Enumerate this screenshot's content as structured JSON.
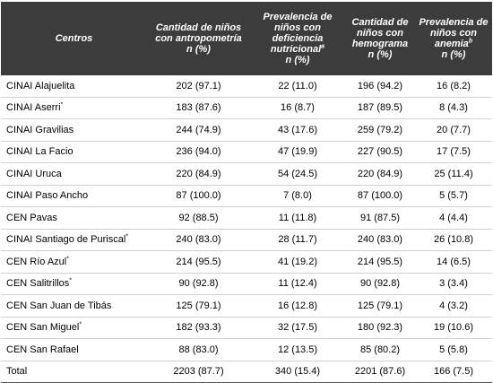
{
  "table": {
    "header": [
      {
        "text": "Centros"
      },
      {
        "text": "Cantidad de niños con antropometría",
        "unit": "n (%)"
      },
      {
        "text": "Prevalencia de niños con deficiencia nutricional",
        "sup": "a",
        "unit": "n (%)"
      },
      {
        "text": "Cantidad de niños con hemograma",
        "unit": "n (%)"
      },
      {
        "text": "Prevalencia de niños con anemia",
        "sup": "b",
        "unit": "n (%)"
      }
    ],
    "rows": [
      {
        "centro": "CINAI Alajuelita",
        "cells": [
          "202 (97.1)",
          "22 (11.0)",
          "196 (94.2)",
          "16 (8.2)"
        ]
      },
      {
        "centro": "CINAI Aserri",
        "sup": "*",
        "cells": [
          "183 (87.6)",
          "16 (8.7)",
          "187 (89.5)",
          "8 (4.3)"
        ]
      },
      {
        "centro": "CINAI Gravilias",
        "cells": [
          "244 (74.9)",
          "43 (17.6)",
          "259 (79.2)",
          "20 (7.7)"
        ]
      },
      {
        "centro": "CINAI La Facio",
        "cells": [
          "236 (94.0)",
          "47 (19.9)",
          "227 (90.5)",
          "17 (7.5)"
        ]
      },
      {
        "centro": "CINAI Uruca",
        "cells": [
          "220 (84.9)",
          "54 (24.5)",
          "220 (84.9)",
          "25 (11.4)"
        ]
      },
      {
        "centro": "CINAI Paso Ancho",
        "cells": [
          "87 (100.0)",
          "7 (8.0)",
          "87 (100.0)",
          "5 (5.7)"
        ]
      },
      {
        "centro": "CEN Pavas",
        "cells": [
          "92 (88.5)",
          "11 (11.8)",
          "91 (87.5)",
          "4 (4.4)"
        ]
      },
      {
        "centro": "CINAI Santiago de Puriscal",
        "sup": "*",
        "cells": [
          "240 (83.0)",
          "28 (11.7)",
          "240 (83.0)",
          "26 (10.8)"
        ]
      },
      {
        "centro": "CEN Río Azul",
        "sup": "*",
        "cells": [
          "214 (95.5)",
          "41 (19.2)",
          "214 (95.5)",
          "14 (6.5)"
        ]
      },
      {
        "centro": "CEN Salitrillos",
        "sup": "*",
        "cells": [
          "90 (92.8)",
          "11 (12.4)",
          "90 (92.8)",
          "3 (3.4)"
        ]
      },
      {
        "centro": "CEN San Juan de Tibás",
        "cells": [
          "125 (79.1)",
          "16 (12.8)",
          "125 (79.1)",
          "4 (3.2)"
        ]
      },
      {
        "centro": "CEN San Miguel",
        "sup": "*",
        "cells": [
          "182 (93.3)",
          "32 (17.5)",
          "180 (92.3)",
          "19 (10.6)"
        ]
      },
      {
        "centro": "CEN San Rafael",
        "cells": [
          "88 (83.0)",
          "12 (13.5)",
          "85 (80.2)",
          "5 (5.8)"
        ]
      },
      {
        "centro": "Total",
        "cells": [
          "2203 (87.7)",
          "340 (15.4)",
          "2201 (87.6)",
          "166 (7.5)"
        ]
      }
    ]
  }
}
